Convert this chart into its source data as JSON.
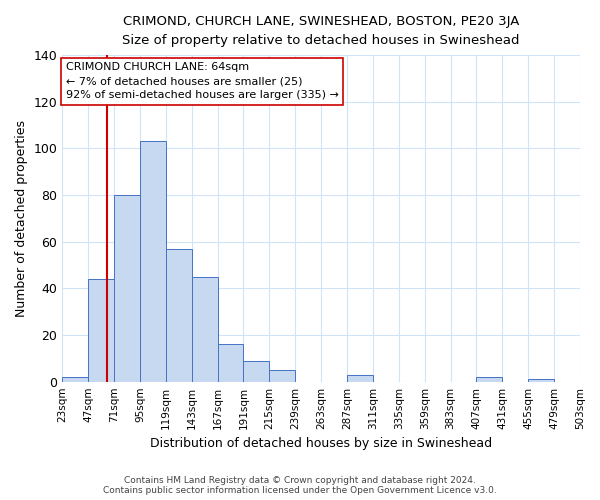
{
  "title": "CRIMOND, CHURCH LANE, SWINESHEAD, BOSTON, PE20 3JA",
  "subtitle": "Size of property relative to detached houses in Swineshead",
  "xlabel": "Distribution of detached houses by size in Swineshead",
  "ylabel": "Number of detached properties",
  "footer_line1": "Contains HM Land Registry data © Crown copyright and database right 2024.",
  "footer_line2": "Contains public sector information licensed under the Open Government Licence v3.0.",
  "bin_edges": [
    23,
    47,
    71,
    95,
    119,
    143,
    167,
    191,
    215,
    239,
    263,
    287,
    311,
    335,
    359,
    383,
    407,
    431,
    455,
    479,
    503
  ],
  "bin_labels": [
    "23sqm",
    "47sqm",
    "71sqm",
    "95sqm",
    "119sqm",
    "143sqm",
    "167sqm",
    "191sqm",
    "215sqm",
    "239sqm",
    "263sqm",
    "287sqm",
    "311sqm",
    "335sqm",
    "359sqm",
    "383sqm",
    "407sqm",
    "431sqm",
    "455sqm",
    "479sqm",
    "503sqm"
  ],
  "bar_heights": [
    2,
    44,
    80,
    103,
    57,
    45,
    16,
    9,
    5,
    0,
    0,
    3,
    0,
    0,
    0,
    0,
    2,
    0,
    1,
    0
  ],
  "bar_color": "#c6d9f0",
  "bar_edge_color": "#4472c4",
  "grid_color": "#d0e4f7",
  "background_color": "#ffffff",
  "property_size": 64,
  "red_line_color": "#cc0000",
  "annotation_line1": "CRIMOND CHURCH LANE: 64sqm",
  "annotation_line2": "← 7% of detached houses are smaller (25)",
  "annotation_line3": "92% of semi-detached houses are larger (335) →",
  "annotation_box_edge_color": "#cc0000",
  "ylim": [
    0,
    140
  ],
  "yticks": [
    0,
    20,
    40,
    60,
    80,
    100,
    120,
    140
  ]
}
